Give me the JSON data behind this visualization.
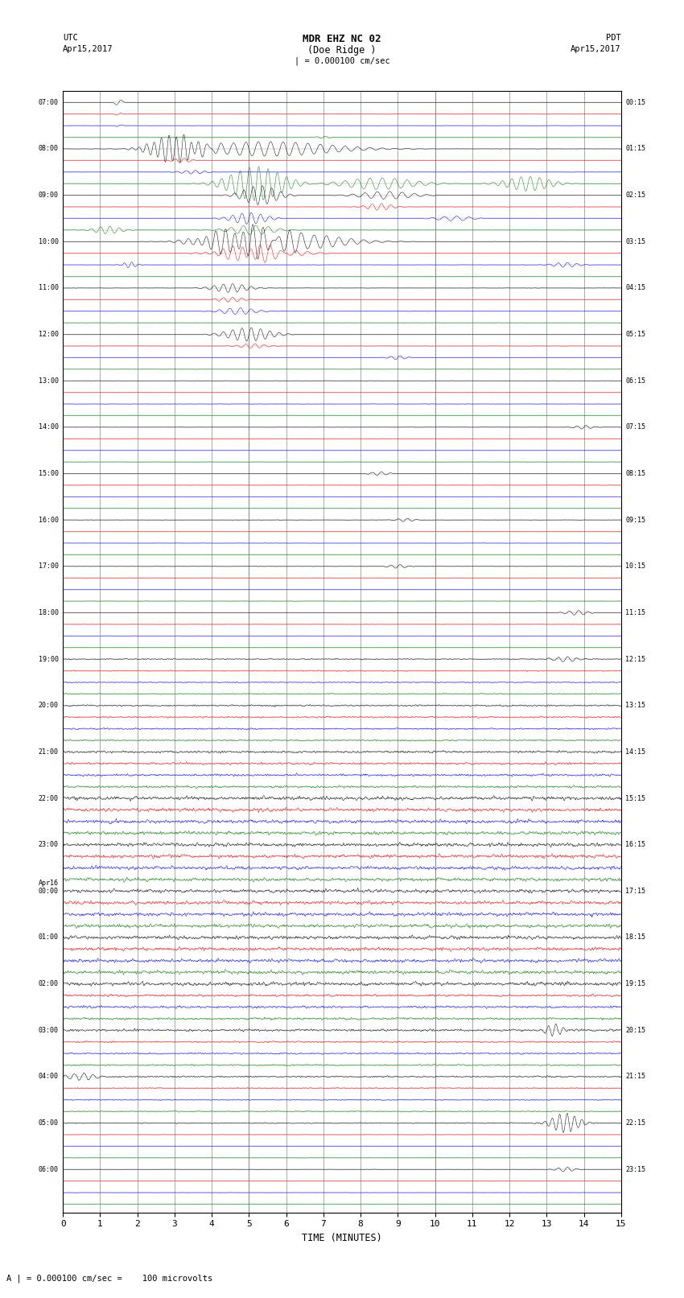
{
  "title_line1": "MDR EHZ NC 02",
  "title_line2": "(Doe Ridge )",
  "scale_label": "| = 0.000100 cm/sec",
  "label_left_top": "UTC",
  "label_left_date": "Apr15,2017",
  "label_right_top": "PDT",
  "label_right_date": "Apr15,2017",
  "xlabel": "TIME (MINUTES)",
  "footer": "A | = 0.000100 cm/sec =    100 microvolts",
  "xlim": [
    0,
    15
  ],
  "xticks": [
    0,
    1,
    2,
    3,
    4,
    5,
    6,
    7,
    8,
    9,
    10,
    11,
    12,
    13,
    14,
    15
  ],
  "num_traces": 96,
  "trace_colors_cycle": [
    "black",
    "red",
    "blue",
    "green"
  ],
  "left_labels": [
    "07:00",
    "",
    "08:00",
    "",
    "09:00",
    "",
    "10:00",
    "",
    "11:00",
    "",
    "12:00",
    "",
    "13:00",
    "",
    "14:00",
    "",
    "15:00",
    "",
    "16:00",
    "",
    "17:00",
    "",
    "18:00",
    "",
    "19:00",
    "",
    "20:00",
    "",
    "21:00",
    "",
    "22:00",
    "",
    "23:00",
    "",
    "Apr16\n00:00",
    "",
    "01:00",
    "",
    "02:00",
    "",
    "03:00",
    "",
    "04:00",
    "",
    "05:00",
    "",
    "06:00",
    ""
  ],
  "right_labels": [
    "00:15",
    "",
    "01:15",
    "",
    "02:15",
    "",
    "03:15",
    "",
    "04:15",
    "",
    "05:15",
    "",
    "06:15",
    "",
    "07:15",
    "",
    "08:15",
    "",
    "09:15",
    "",
    "10:15",
    "",
    "11:15",
    "",
    "12:15",
    "",
    "13:15",
    "",
    "14:15",
    "",
    "15:15",
    "",
    "16:15",
    "",
    "17:15",
    "",
    "18:15",
    "",
    "19:15",
    "",
    "20:15",
    "",
    "21:15",
    "",
    "22:15",
    "",
    "23:15",
    ""
  ],
  "bg_color": "#ffffff",
  "grid_color_v": "#aaaaaa",
  "grid_color_h": "#888888"
}
